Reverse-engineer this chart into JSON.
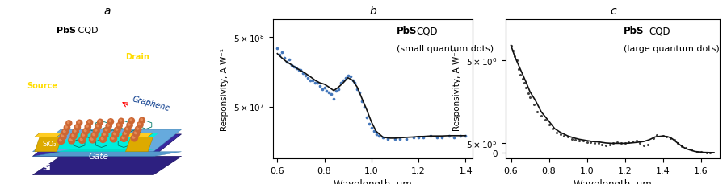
{
  "panel_b_title": "b",
  "panel_c_title": "c",
  "panel_a_title": "a",
  "xlabel": "Wavelength, μm",
  "ylabel": "Responsivity, A W⁻¹",
  "b_xlim": [
    0.58,
    1.43
  ],
  "c_xlim": [
    0.57,
    1.7
  ],
  "c_ylim": [
    -300000.0,
    7200000.0
  ],
  "dot_color_b": "#4477bb",
  "dot_color_c": "#444444",
  "line_color": "#111111",
  "background": "#ffffff",
  "b_scatter_x": [
    0.6,
    0.61,
    0.62,
    0.63,
    0.64,
    0.65,
    0.66,
    0.67,
    0.68,
    0.69,
    0.7,
    0.71,
    0.72,
    0.73,
    0.74,
    0.75,
    0.76,
    0.77,
    0.78,
    0.79,
    0.8,
    0.81,
    0.82,
    0.83,
    0.84,
    0.85,
    0.86,
    0.87,
    0.88,
    0.89,
    0.9,
    0.91,
    0.92,
    0.93,
    0.94,
    0.95,
    0.96,
    0.97,
    0.98,
    0.99,
    1.0,
    1.01,
    1.02,
    1.03,
    1.05,
    1.07,
    1.1,
    1.12,
    1.15,
    1.18,
    1.2,
    1.22,
    1.25,
    1.28,
    1.3,
    1.33,
    1.35,
    1.38,
    1.4
  ],
  "b_scatter_y": [
    350000000.0,
    280000000.0,
    300000000.0,
    250000000.0,
    220000000.0,
    240000000.0,
    200000000.0,
    190000000.0,
    180000000.0,
    170000000.0,
    170000000.0,
    150000000.0,
    140000000.0,
    130000000.0,
    120000000.0,
    120000000.0,
    110000000.0,
    110000000.0,
    100000000.0,
    90000000.0,
    95000000.0,
    85000000.0,
    80000000.0,
    75000000.0,
    65000000.0,
    85000000.0,
    90000000.0,
    110000000.0,
    120000000.0,
    130000000.0,
    140000000.0,
    135000000.0,
    120000000.0,
    110000000.0,
    90000000.0,
    80000000.0,
    60000000.0,
    50000000.0,
    35000000.0,
    28000000.0,
    25000000.0,
    22000000.0,
    20000000.0,
    19000000.0,
    18000000.0,
    17000000.0,
    17000000.0,
    17000000.0,
    17000000.0,
    18000000.0,
    18000000.0,
    18000000.0,
    19000000.0,
    18000000.0,
    18000000.0,
    19000000.0,
    18000000.0,
    19000000.0,
    19000000.0
  ],
  "b_line_x": [
    0.6,
    0.62,
    0.64,
    0.66,
    0.68,
    0.7,
    0.72,
    0.74,
    0.76,
    0.78,
    0.8,
    0.82,
    0.84,
    0.86,
    0.88,
    0.9,
    0.92,
    0.94,
    0.96,
    0.98,
    1.0,
    1.02,
    1.05,
    1.08,
    1.1,
    1.13,
    1.15,
    1.18,
    1.2,
    1.22,
    1.25,
    1.28,
    1.3,
    1.33,
    1.35,
    1.38,
    1.4
  ],
  "b_line_y": [
    290000000.0,
    250000000.0,
    220000000.0,
    200000000.0,
    180000000.0,
    165000000.0,
    150000000.0,
    135000000.0,
    120000000.0,
    110000000.0,
    105000000.0,
    95000000.0,
    85000000.0,
    95000000.0,
    110000000.0,
    130000000.0,
    120000000.0,
    95000000.0,
    65000000.0,
    45000000.0,
    30000000.0,
    22000000.0,
    18000000.0,
    17500000.0,
    17500000.0,
    17800000.0,
    18000000.0,
    18200000.0,
    18500000.0,
    18500000.0,
    18800000.0,
    18800000.0,
    18800000.0,
    19000000.0,
    19000000.0,
    19000000.0,
    19000000.0
  ],
  "c_scatter_x": [
    0.6,
    0.61,
    0.62,
    0.63,
    0.64,
    0.65,
    0.66,
    0.67,
    0.68,
    0.69,
    0.7,
    0.72,
    0.74,
    0.76,
    0.78,
    0.8,
    0.82,
    0.84,
    0.86,
    0.88,
    0.9,
    0.92,
    0.94,
    0.96,
    0.98,
    1.0,
    1.02,
    1.04,
    1.06,
    1.08,
    1.1,
    1.12,
    1.14,
    1.16,
    1.18,
    1.2,
    1.22,
    1.24,
    1.26,
    1.28,
    1.3,
    1.32,
    1.35,
    1.37,
    1.4,
    1.42,
    1.44,
    1.46,
    1.48,
    1.5,
    1.52,
    1.55,
    1.58,
    1.6,
    1.63,
    1.65
  ],
  "c_scatter_y": [
    5800000.0,
    5500000.0,
    5200000.0,
    5000000.0,
    4500000.0,
    4200000.0,
    4000000.0,
    3800000.0,
    3500000.0,
    3200000.0,
    3000000.0,
    2600000.0,
    2200000.0,
    2000000.0,
    1800000.0,
    1500000.0,
    1300000.0,
    1100000.0,
    1000000.0,
    900000.0,
    850000.0,
    750000.0,
    700000.0,
    650000.0,
    650000.0,
    550000.0,
    550000.0,
    500000.0,
    500000.0,
    450000.0,
    400000.0,
    450000.0,
    500000.0,
    550000.0,
    500000.0,
    500000.0,
    550000.0,
    600000.0,
    650000.0,
    500000.0,
    400000.0,
    450000.0,
    800000.0,
    950000.0,
    900000.0,
    850000.0,
    800000.0,
    700000.0,
    500000.0,
    350000.0,
    250000.0,
    150000.0,
    50000.0,
    20000.0,
    5000.0,
    1000.0
  ],
  "c_line_x": [
    0.6,
    0.62,
    0.65,
    0.68,
    0.7,
    0.73,
    0.76,
    0.8,
    0.83,
    0.86,
    0.9,
    0.93,
    0.96,
    1.0,
    1.03,
    1.06,
    1.1,
    1.13,
    1.16,
    1.2,
    1.23,
    1.26,
    1.3,
    1.33,
    1.36,
    1.4,
    1.43,
    1.45,
    1.48,
    1.5,
    1.52,
    1.55,
    1.57,
    1.6,
    1.62,
    1.65,
    1.67
  ],
  "c_line_y": [
    5800000.0,
    5200000.0,
    4500000.0,
    3800000.0,
    3300000.0,
    2800000.0,
    2200000.0,
    1700000.0,
    1300000.0,
    1100000.0,
    900000.0,
    800000.0,
    720000.0,
    650000.0,
    600000.0,
    580000.0,
    520000.0,
    500000.0,
    500000.0,
    500000.0,
    520000.0,
    550000.0,
    600000.0,
    700000.0,
    850000.0,
    900000.0,
    850000.0,
    750000.0,
    500000.0,
    350000.0,
    220000.0,
    120000.0,
    60000.0,
    25000.0,
    10000.0,
    3000.0,
    500.0
  ]
}
